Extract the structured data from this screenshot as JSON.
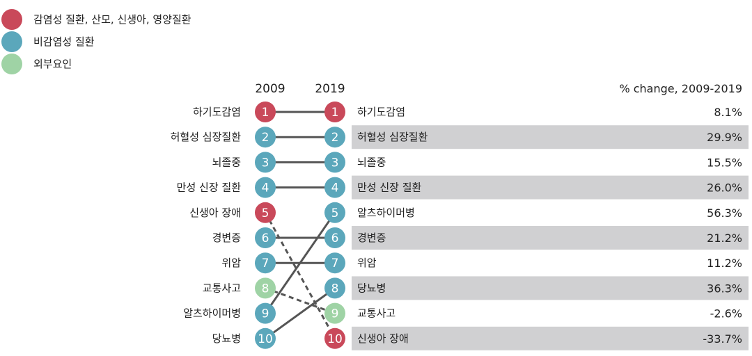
{
  "chart_data": {
    "type": "slope",
    "legend": [
      {
        "key": "communicable",
        "label": "감염성 질환, 산모, 신생아, 영양질환",
        "color": "#c9495a"
      },
      {
        "key": "noncommunicable",
        "label": "비감염성 질환",
        "color": "#5ba7bb"
      },
      {
        "key": "injury",
        "label": "외부요인",
        "color": "#9fd3a5"
      }
    ],
    "year_left": "2009",
    "year_right": "2019",
    "change_header": "% change, 2009-2019",
    "causes": [
      {
        "name": "하기도감염",
        "group": "communicable",
        "rank_2009": 1,
        "rank_2019": 1,
        "change": "8.1%"
      },
      {
        "name": "허혈성 심장질환",
        "group": "noncommunicable",
        "rank_2009": 2,
        "rank_2019": 2,
        "change": "29.9%"
      },
      {
        "name": "뇌졸중",
        "group": "noncommunicable",
        "rank_2009": 3,
        "rank_2019": 3,
        "change": "15.5%"
      },
      {
        "name": "만성 신장 질환",
        "group": "noncommunicable",
        "rank_2009": 4,
        "rank_2019": 4,
        "change": "26.0%"
      },
      {
        "name": "신생아 장애",
        "group": "communicable",
        "rank_2009": 5,
        "rank_2019": 10,
        "change": "-33.7%"
      },
      {
        "name": "경변증",
        "group": "noncommunicable",
        "rank_2009": 6,
        "rank_2019": 6,
        "change": "21.2%"
      },
      {
        "name": "위암",
        "group": "noncommunicable",
        "rank_2009": 7,
        "rank_2019": 7,
        "change": "11.2%"
      },
      {
        "name": "교통사고",
        "group": "injury",
        "rank_2009": 8,
        "rank_2019": 9,
        "change": "-2.6%"
      },
      {
        "name": "알츠하이머병",
        "group": "noncommunicable",
        "rank_2009": 9,
        "rank_2019": 5,
        "change": "56.3%"
      },
      {
        "name": "당뇨병",
        "group": "noncommunicable",
        "rank_2009": 10,
        "rank_2019": 8,
        "change": "36.3%"
      }
    ],
    "line_color": "#555555",
    "band_color": "#d0d0d2"
  }
}
